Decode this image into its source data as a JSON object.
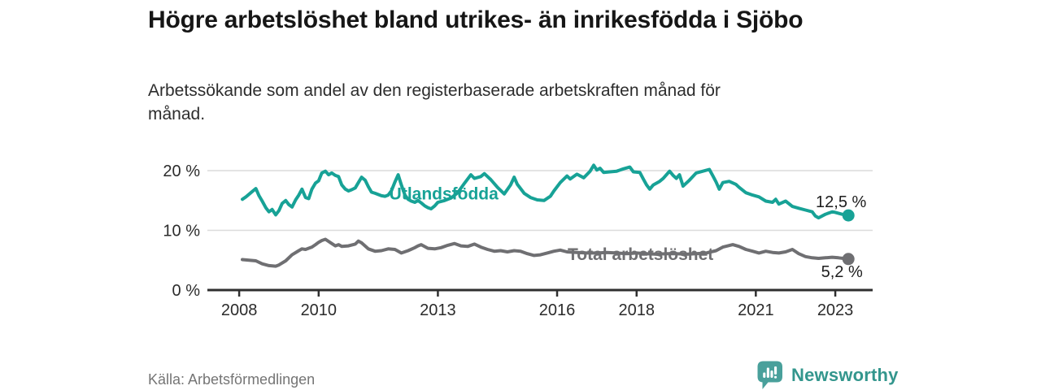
{
  "header": {
    "title": "Högre arbetslöshet bland utrikes- än inrikesfödda i Sjöbo",
    "subtitle": "Arbetssökande som andel av den registerbaserade arbetskraften månad för månad."
  },
  "footer": {
    "source": "Källa: Arbetsförmedlingen",
    "brand": "Newsworthy",
    "brand_color": "#33968d",
    "brand_icon": "bar-chart-speech-bubble",
    "brand_icon_color": "#49a09b"
  },
  "colors": {
    "grid": "#dcdcdc",
    "axis": "#2f2f2f",
    "tick_text": "#2b2b2b",
    "end_label_text": "#1d1d1d"
  },
  "chart_data": {
    "type": "line",
    "title": "Högre arbetslöshet bland utrikes- än inrikesfödda i Sjöbo",
    "subtitle": "Arbetssökande som andel av den registerbaserade arbetskraften månad för månad.",
    "source": "Källa: Arbetsförmedlingen",
    "grid": "horizontal",
    "legend_position": "inline-labels",
    "x_axis": {
      "range": [
        2007.2,
        2023.94
      ],
      "ticks": [
        {
          "value": 2008,
          "label": "2008"
        },
        {
          "value": 2010,
          "label": "2010"
        },
        {
          "value": 2013,
          "label": "2013"
        },
        {
          "value": 2016,
          "label": "2016"
        },
        {
          "value": 2018,
          "label": "2018"
        },
        {
          "value": 2021,
          "label": "2021"
        },
        {
          "value": 2023,
          "label": "2023"
        }
      ]
    },
    "y_axis": {
      "range": [
        0,
        22
      ],
      "unit": "%",
      "ticks": [
        {
          "value": 0,
          "label": "0 %"
        },
        {
          "value": 10,
          "label": "10 %"
        },
        {
          "value": 20,
          "label": "20 %"
        }
      ]
    },
    "series": [
      {
        "name": "Utlandsfödda",
        "color": "#17a296",
        "end_value": 12.5,
        "end_label": "12,5 %",
        "end_label_offset": [
          -9,
          -10
        ],
        "label_pos": {
          "x": 2013.15,
          "y": 16.1
        },
        "points": [
          [
            2008.08,
            15.2
          ],
          [
            2008.17,
            15.6
          ],
          [
            2008.33,
            16.5
          ],
          [
            2008.42,
            17.0
          ],
          [
            2008.5,
            15.8
          ],
          [
            2008.58,
            14.9
          ],
          [
            2008.67,
            13.8
          ],
          [
            2008.75,
            13.1
          ],
          [
            2008.83,
            13.5
          ],
          [
            2008.92,
            12.6
          ],
          [
            2009.0,
            13.3
          ],
          [
            2009.08,
            14.5
          ],
          [
            2009.17,
            15.0
          ],
          [
            2009.25,
            14.3
          ],
          [
            2009.33,
            13.9
          ],
          [
            2009.42,
            15.1
          ],
          [
            2009.5,
            15.9
          ],
          [
            2009.58,
            16.9
          ],
          [
            2009.67,
            15.5
          ],
          [
            2009.75,
            15.3
          ],
          [
            2009.83,
            16.9
          ],
          [
            2009.92,
            17.9
          ],
          [
            2010.0,
            18.3
          ],
          [
            2010.08,
            19.6
          ],
          [
            2010.17,
            19.9
          ],
          [
            2010.25,
            19.3
          ],
          [
            2010.33,
            19.6
          ],
          [
            2010.42,
            19.2
          ],
          [
            2010.5,
            19.0
          ],
          [
            2010.58,
            17.6
          ],
          [
            2010.67,
            16.9
          ],
          [
            2010.75,
            16.6
          ],
          [
            2010.83,
            16.8
          ],
          [
            2010.92,
            17.1
          ],
          [
            2011.0,
            18.0
          ],
          [
            2011.08,
            18.9
          ],
          [
            2011.17,
            18.4
          ],
          [
            2011.25,
            17.3
          ],
          [
            2011.33,
            16.4
          ],
          [
            2011.42,
            16.2
          ],
          [
            2011.5,
            16.0
          ],
          [
            2011.58,
            15.8
          ],
          [
            2011.67,
            15.7
          ],
          [
            2011.75,
            15.9
          ],
          [
            2011.83,
            16.6
          ],
          [
            2011.92,
            18.1
          ],
          [
            2012.0,
            19.3
          ],
          [
            2012.08,
            17.6
          ],
          [
            2012.17,
            15.9
          ],
          [
            2012.25,
            15.2
          ],
          [
            2012.33,
            14.9
          ],
          [
            2012.42,
            14.7
          ],
          [
            2012.5,
            15.0
          ],
          [
            2012.58,
            14.6
          ],
          [
            2012.67,
            14.1
          ],
          [
            2012.75,
            13.8
          ],
          [
            2012.83,
            13.6
          ],
          [
            2012.92,
            14.1
          ],
          [
            2013.0,
            14.7
          ],
          [
            2013.17,
            15.0
          ],
          [
            2013.33,
            15.4
          ],
          [
            2013.5,
            16.3
          ],
          [
            2013.67,
            17.9
          ],
          [
            2013.83,
            19.3
          ],
          [
            2013.92,
            18.7
          ],
          [
            2014.08,
            19.0
          ],
          [
            2014.17,
            19.5
          ],
          [
            2014.33,
            18.5
          ],
          [
            2014.5,
            17.2
          ],
          [
            2014.67,
            16.1
          ],
          [
            2014.83,
            17.6
          ],
          [
            2014.92,
            18.9
          ],
          [
            2015.0,
            17.7
          ],
          [
            2015.17,
            16.2
          ],
          [
            2015.33,
            15.5
          ],
          [
            2015.5,
            15.1
          ],
          [
            2015.67,
            15.0
          ],
          [
            2015.83,
            15.7
          ],
          [
            2015.92,
            16.6
          ],
          [
            2016.08,
            18.0
          ],
          [
            2016.25,
            19.1
          ],
          [
            2016.33,
            18.6
          ],
          [
            2016.5,
            19.4
          ],
          [
            2016.67,
            18.8
          ],
          [
            2016.83,
            19.9
          ],
          [
            2016.92,
            20.9
          ],
          [
            2017.0,
            20.1
          ],
          [
            2017.08,
            20.4
          ],
          [
            2017.17,
            19.7
          ],
          [
            2017.33,
            19.8
          ],
          [
            2017.5,
            19.9
          ],
          [
            2017.67,
            20.3
          ],
          [
            2017.83,
            20.6
          ],
          [
            2017.92,
            19.8
          ],
          [
            2018.08,
            19.7
          ],
          [
            2018.17,
            18.6
          ],
          [
            2018.25,
            17.6
          ],
          [
            2018.33,
            16.9
          ],
          [
            2018.42,
            17.6
          ],
          [
            2018.58,
            18.2
          ],
          [
            2018.67,
            18.7
          ],
          [
            2018.83,
            19.9
          ],
          [
            2018.92,
            19.2
          ],
          [
            2019.0,
            18.7
          ],
          [
            2019.08,
            19.3
          ],
          [
            2019.17,
            17.4
          ],
          [
            2019.33,
            18.4
          ],
          [
            2019.5,
            19.6
          ],
          [
            2019.67,
            19.9
          ],
          [
            2019.83,
            20.2
          ],
          [
            2019.92,
            19.1
          ],
          [
            2020.0,
            18.1
          ],
          [
            2020.08,
            16.9
          ],
          [
            2020.17,
            18.0
          ],
          [
            2020.33,
            18.2
          ],
          [
            2020.5,
            17.7
          ],
          [
            2020.58,
            17.2
          ],
          [
            2020.75,
            16.3
          ],
          [
            2020.92,
            15.9
          ],
          [
            2021.08,
            15.6
          ],
          [
            2021.25,
            14.9
          ],
          [
            2021.42,
            14.7
          ],
          [
            2021.5,
            15.2
          ],
          [
            2021.58,
            14.4
          ],
          [
            2021.75,
            14.9
          ],
          [
            2021.92,
            14.0
          ],
          [
            2022.08,
            13.7
          ],
          [
            2022.25,
            13.4
          ],
          [
            2022.42,
            13.1
          ],
          [
            2022.5,
            12.4
          ],
          [
            2022.58,
            12.1
          ],
          [
            2022.75,
            12.7
          ],
          [
            2022.92,
            13.1
          ],
          [
            2023.0,
            13.0
          ],
          [
            2023.17,
            12.7
          ],
          [
            2023.33,
            12.5
          ]
        ]
      },
      {
        "name": "Total arbetslöshet",
        "color": "#6f6f72",
        "end_value": 5.2,
        "end_label": "5,2 %",
        "end_label_offset": [
          -8,
          22
        ],
        "label_pos": {
          "x": 2018.1,
          "y": 6.0
        },
        "points": [
          [
            2008.08,
            5.1
          ],
          [
            2008.25,
            5.0
          ],
          [
            2008.42,
            4.9
          ],
          [
            2008.58,
            4.4
          ],
          [
            2008.75,
            4.1
          ],
          [
            2008.92,
            4.0
          ],
          [
            2009.0,
            4.2
          ],
          [
            2009.17,
            4.9
          ],
          [
            2009.33,
            5.9
          ],
          [
            2009.5,
            6.6
          ],
          [
            2009.58,
            6.9
          ],
          [
            2009.67,
            6.8
          ],
          [
            2009.83,
            7.2
          ],
          [
            2009.92,
            7.6
          ],
          [
            2010.0,
            8.0
          ],
          [
            2010.08,
            8.3
          ],
          [
            2010.17,
            8.5
          ],
          [
            2010.33,
            7.8
          ],
          [
            2010.42,
            7.4
          ],
          [
            2010.5,
            7.6
          ],
          [
            2010.58,
            7.3
          ],
          [
            2010.75,
            7.4
          ],
          [
            2010.92,
            7.7
          ],
          [
            2011.0,
            8.2
          ],
          [
            2011.08,
            7.9
          ],
          [
            2011.25,
            6.9
          ],
          [
            2011.42,
            6.5
          ],
          [
            2011.58,
            6.6
          ],
          [
            2011.75,
            6.9
          ],
          [
            2011.92,
            6.8
          ],
          [
            2012.08,
            6.2
          ],
          [
            2012.25,
            6.6
          ],
          [
            2012.42,
            7.1
          ],
          [
            2012.5,
            7.4
          ],
          [
            2012.58,
            7.6
          ],
          [
            2012.75,
            7.0
          ],
          [
            2012.92,
            6.9
          ],
          [
            2013.08,
            7.1
          ],
          [
            2013.25,
            7.5
          ],
          [
            2013.42,
            7.8
          ],
          [
            2013.58,
            7.4
          ],
          [
            2013.75,
            7.3
          ],
          [
            2013.92,
            7.7
          ],
          [
            2014.08,
            7.2
          ],
          [
            2014.25,
            6.8
          ],
          [
            2014.42,
            6.5
          ],
          [
            2014.58,
            6.6
          ],
          [
            2014.75,
            6.4
          ],
          [
            2014.92,
            6.6
          ],
          [
            2015.08,
            6.5
          ],
          [
            2015.25,
            6.1
          ],
          [
            2015.42,
            5.8
          ],
          [
            2015.58,
            5.9
          ],
          [
            2015.75,
            6.2
          ],
          [
            2015.92,
            6.5
          ],
          [
            2016.08,
            6.7
          ],
          [
            2016.25,
            6.4
          ],
          [
            2016.5,
            6.3
          ],
          [
            2016.75,
            6.2
          ],
          [
            2017.0,
            6.2
          ],
          [
            2017.25,
            6.3
          ],
          [
            2017.5,
            6.2
          ],
          [
            2017.75,
            6.1
          ],
          [
            2018.0,
            6.2
          ],
          [
            2018.25,
            6.1
          ],
          [
            2018.5,
            6.0
          ],
          [
            2018.75,
            6.1
          ],
          [
            2019.0,
            6.1
          ],
          [
            2019.25,
            6.0
          ],
          [
            2019.5,
            6.1
          ],
          [
            2019.75,
            6.2
          ],
          [
            2020.0,
            6.6
          ],
          [
            2020.17,
            7.2
          ],
          [
            2020.42,
            7.6
          ],
          [
            2020.58,
            7.3
          ],
          [
            2020.75,
            6.8
          ],
          [
            2020.92,
            6.5
          ],
          [
            2021.08,
            6.2
          ],
          [
            2021.25,
            6.5
          ],
          [
            2021.42,
            6.3
          ],
          [
            2021.58,
            6.2
          ],
          [
            2021.75,
            6.4
          ],
          [
            2021.92,
            6.8
          ],
          [
            2022.08,
            6.1
          ],
          [
            2022.25,
            5.6
          ],
          [
            2022.42,
            5.4
          ],
          [
            2022.58,
            5.3
          ],
          [
            2022.75,
            5.4
          ],
          [
            2022.92,
            5.5
          ],
          [
            2023.08,
            5.4
          ],
          [
            2023.2,
            5.3
          ],
          [
            2023.33,
            5.2
          ]
        ]
      }
    ]
  }
}
